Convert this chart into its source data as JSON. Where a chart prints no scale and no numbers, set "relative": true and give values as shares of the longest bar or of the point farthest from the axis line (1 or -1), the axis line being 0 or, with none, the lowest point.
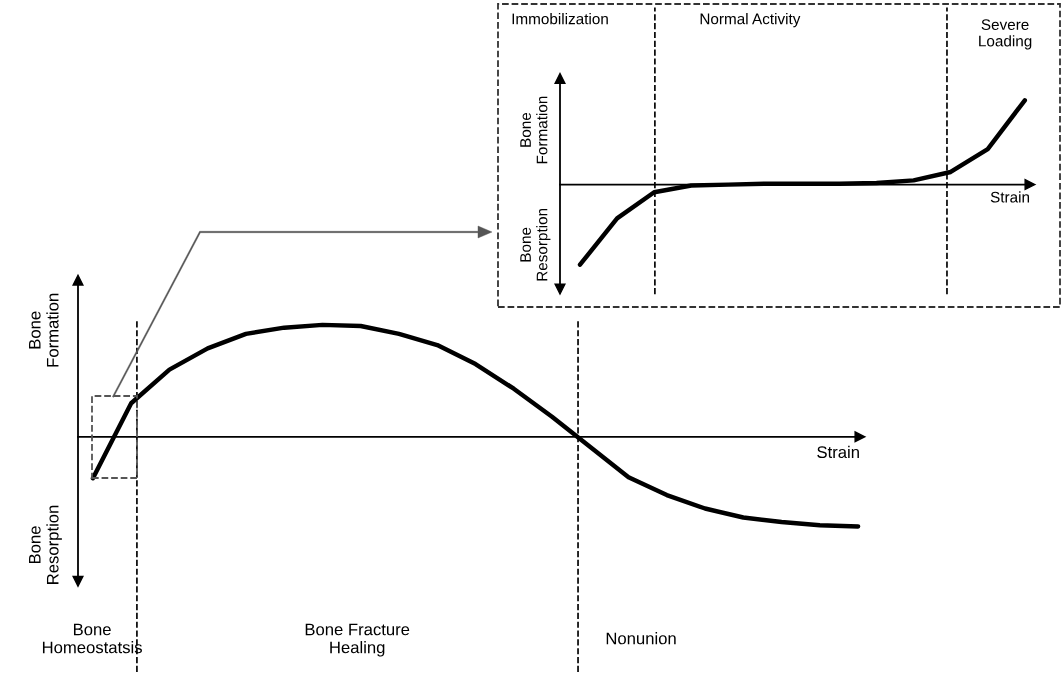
{
  "chart_data": [
    {
      "type": "line",
      "relative": true,
      "xlabel": "Strain",
      "annotations": [
        "Bone\nFormation",
        "Bone\nResorption",
        "Bone\nHomeostatsis",
        "Bone Fracture\nHealing",
        "Nonunion"
      ],
      "categories": [
        null,
        null,
        null,
        null,
        null,
        null,
        null,
        null,
        null,
        null,
        null,
        null,
        null,
        null,
        null,
        null,
        null,
        null,
        null,
        null,
        null
      ],
      "series": [
        {
          "color": "#000000",
          "values": [
            -0.37,
            0.3,
            0.6,
            0.79,
            0.92,
            0.975,
            1.0,
            0.99,
            0.92,
            0.82,
            0.65,
            0.43,
            0.18,
            -0.09,
            -0.36,
            -0.52,
            -0.64,
            -0.72,
            -0.76,
            -0.79,
            -0.8
          ]
        }
      ]
    },
    {
      "type": "line",
      "relative": true,
      "xlabel": "Strain",
      "annotations": [
        "Bone\nFormation",
        "Bone\nResorption",
        "Immobilization",
        "Normal Activity",
        "Severe\nLoading"
      ],
      "categories": [
        null,
        null,
        null,
        null,
        null,
        null,
        null,
        null,
        null,
        null,
        null,
        null,
        null
      ],
      "series": [
        {
          "color": "#000000",
          "values": [
            -0.95,
            -0.4,
            -0.09,
            -0.01,
            0.0,
            0.01,
            0.01,
            0.01,
            0.02,
            0.05,
            0.15,
            0.42,
            1.0
          ]
        }
      ]
    }
  ]
}
